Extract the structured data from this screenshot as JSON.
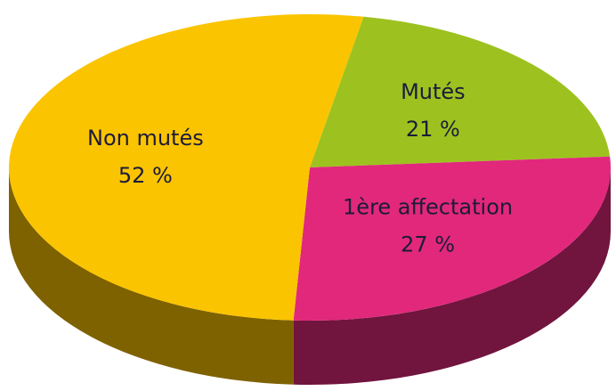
{
  "chart_data": {
    "type": "pie",
    "categories": [
      "Non mutés",
      "Mutés",
      "1ère affectation"
    ],
    "values": [
      52,
      21,
      27
    ],
    "value_labels": [
      "52 %",
      "21 %",
      "27 %"
    ],
    "colors": [
      "#fbc400",
      "#9dc21f",
      "#e1287b"
    ]
  }
}
